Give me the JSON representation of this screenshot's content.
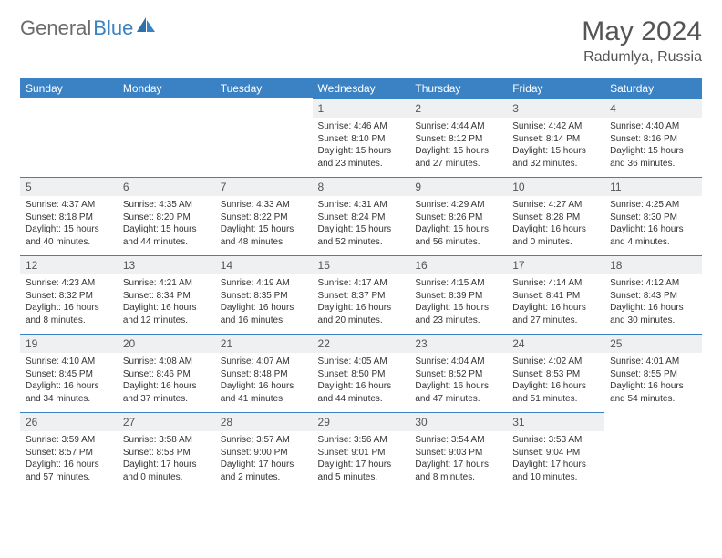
{
  "brand": {
    "name1": "General",
    "name2": "Blue"
  },
  "title": "May 2024",
  "location": "Radumlya, Russia",
  "colors": {
    "header_bg": "#3b82c4",
    "header_text": "#ffffff",
    "daynum_bg": "#eef0f2",
    "text": "#333333",
    "border": "#3b82c4"
  },
  "weekdays": [
    "Sunday",
    "Monday",
    "Tuesday",
    "Wednesday",
    "Thursday",
    "Friday",
    "Saturday"
  ],
  "weeks": [
    [
      null,
      null,
      null,
      {
        "n": "1",
        "sr": "4:46 AM",
        "ss": "8:10 PM",
        "dl": "15 hours and 23 minutes."
      },
      {
        "n": "2",
        "sr": "4:44 AM",
        "ss": "8:12 PM",
        "dl": "15 hours and 27 minutes."
      },
      {
        "n": "3",
        "sr": "4:42 AM",
        "ss": "8:14 PM",
        "dl": "15 hours and 32 minutes."
      },
      {
        "n": "4",
        "sr": "4:40 AM",
        "ss": "8:16 PM",
        "dl": "15 hours and 36 minutes."
      }
    ],
    [
      {
        "n": "5",
        "sr": "4:37 AM",
        "ss": "8:18 PM",
        "dl": "15 hours and 40 minutes."
      },
      {
        "n": "6",
        "sr": "4:35 AM",
        "ss": "8:20 PM",
        "dl": "15 hours and 44 minutes."
      },
      {
        "n": "7",
        "sr": "4:33 AM",
        "ss": "8:22 PM",
        "dl": "15 hours and 48 minutes."
      },
      {
        "n": "8",
        "sr": "4:31 AM",
        "ss": "8:24 PM",
        "dl": "15 hours and 52 minutes."
      },
      {
        "n": "9",
        "sr": "4:29 AM",
        "ss": "8:26 PM",
        "dl": "15 hours and 56 minutes."
      },
      {
        "n": "10",
        "sr": "4:27 AM",
        "ss": "8:28 PM",
        "dl": "16 hours and 0 minutes."
      },
      {
        "n": "11",
        "sr": "4:25 AM",
        "ss": "8:30 PM",
        "dl": "16 hours and 4 minutes."
      }
    ],
    [
      {
        "n": "12",
        "sr": "4:23 AM",
        "ss": "8:32 PM",
        "dl": "16 hours and 8 minutes."
      },
      {
        "n": "13",
        "sr": "4:21 AM",
        "ss": "8:34 PM",
        "dl": "16 hours and 12 minutes."
      },
      {
        "n": "14",
        "sr": "4:19 AM",
        "ss": "8:35 PM",
        "dl": "16 hours and 16 minutes."
      },
      {
        "n": "15",
        "sr": "4:17 AM",
        "ss": "8:37 PM",
        "dl": "16 hours and 20 minutes."
      },
      {
        "n": "16",
        "sr": "4:15 AM",
        "ss": "8:39 PM",
        "dl": "16 hours and 23 minutes."
      },
      {
        "n": "17",
        "sr": "4:14 AM",
        "ss": "8:41 PM",
        "dl": "16 hours and 27 minutes."
      },
      {
        "n": "18",
        "sr": "4:12 AM",
        "ss": "8:43 PM",
        "dl": "16 hours and 30 minutes."
      }
    ],
    [
      {
        "n": "19",
        "sr": "4:10 AM",
        "ss": "8:45 PM",
        "dl": "16 hours and 34 minutes."
      },
      {
        "n": "20",
        "sr": "4:08 AM",
        "ss": "8:46 PM",
        "dl": "16 hours and 37 minutes."
      },
      {
        "n": "21",
        "sr": "4:07 AM",
        "ss": "8:48 PM",
        "dl": "16 hours and 41 minutes."
      },
      {
        "n": "22",
        "sr": "4:05 AM",
        "ss": "8:50 PM",
        "dl": "16 hours and 44 minutes."
      },
      {
        "n": "23",
        "sr": "4:04 AM",
        "ss": "8:52 PM",
        "dl": "16 hours and 47 minutes."
      },
      {
        "n": "24",
        "sr": "4:02 AM",
        "ss": "8:53 PM",
        "dl": "16 hours and 51 minutes."
      },
      {
        "n": "25",
        "sr": "4:01 AM",
        "ss": "8:55 PM",
        "dl": "16 hours and 54 minutes."
      }
    ],
    [
      {
        "n": "26",
        "sr": "3:59 AM",
        "ss": "8:57 PM",
        "dl": "16 hours and 57 minutes."
      },
      {
        "n": "27",
        "sr": "3:58 AM",
        "ss": "8:58 PM",
        "dl": "17 hours and 0 minutes."
      },
      {
        "n": "28",
        "sr": "3:57 AM",
        "ss": "9:00 PM",
        "dl": "17 hours and 2 minutes."
      },
      {
        "n": "29",
        "sr": "3:56 AM",
        "ss": "9:01 PM",
        "dl": "17 hours and 5 minutes."
      },
      {
        "n": "30",
        "sr": "3:54 AM",
        "ss": "9:03 PM",
        "dl": "17 hours and 8 minutes."
      },
      {
        "n": "31",
        "sr": "3:53 AM",
        "ss": "9:04 PM",
        "dl": "17 hours and 10 minutes."
      },
      null
    ]
  ],
  "labels": {
    "sunrise": "Sunrise: ",
    "sunset": "Sunset: ",
    "daylight": "Daylight: "
  }
}
